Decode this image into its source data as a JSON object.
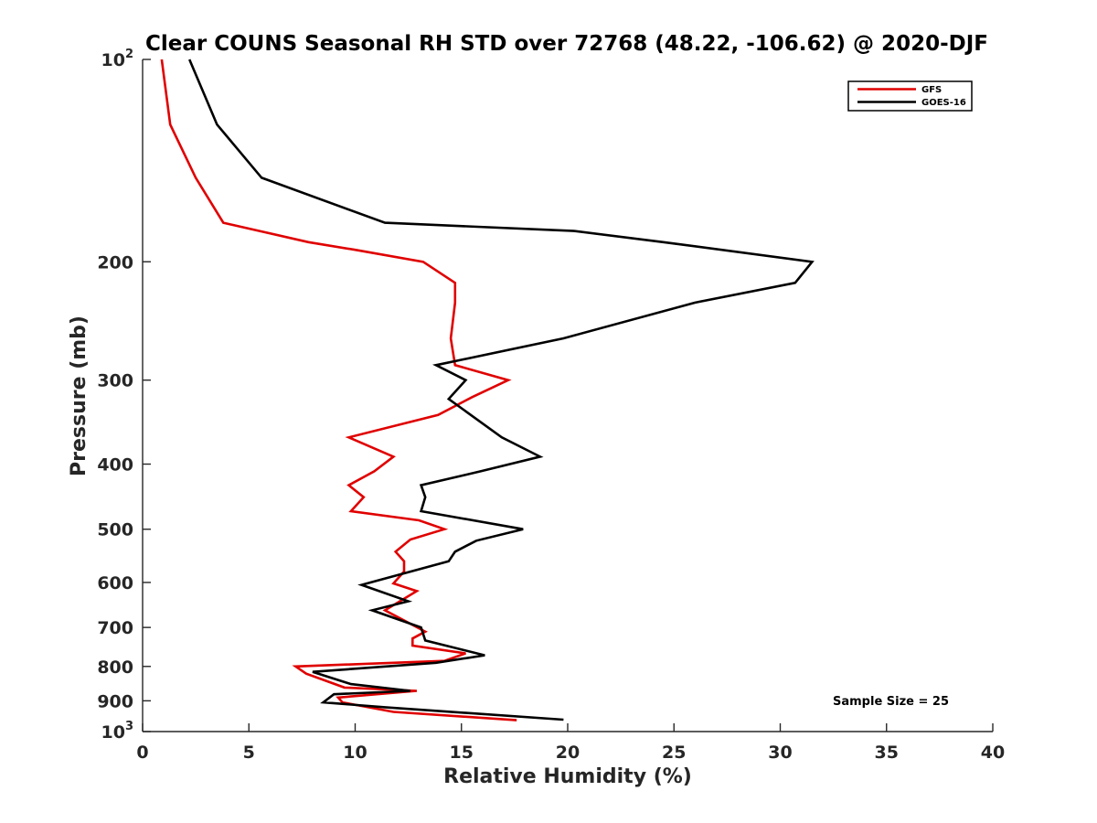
{
  "chart_data": {
    "type": "line",
    "title": "Clear COUNS Seasonal RH STD over 72768 (48.22, -106.62) @ 2020-DJF",
    "xlabel": "Relative Humidity (%)",
    "ylabel": "Pressure (mb)",
    "xlim": [
      0,
      40
    ],
    "ylim": [
      100,
      1000
    ],
    "yscale": "log",
    "y_reversed": true,
    "grid": false,
    "legend_position": "top-right",
    "x_ticks": [
      0,
      5,
      10,
      15,
      20,
      25,
      30,
      35,
      40
    ],
    "x_tick_labels": [
      "0",
      "5",
      "10",
      "15",
      "20",
      "25",
      "30",
      "35",
      "40"
    ],
    "y_ticks": [
      100,
      200,
      300,
      400,
      500,
      600,
      700,
      800,
      900,
      1000
    ],
    "y_tick_labels": [
      {
        "base": "10",
        "exp": "2"
      },
      {
        "base": "200",
        "exp": ""
      },
      {
        "base": "300",
        "exp": ""
      },
      {
        "base": "400",
        "exp": ""
      },
      {
        "base": "500",
        "exp": ""
      },
      {
        "base": "600",
        "exp": ""
      },
      {
        "base": "700",
        "exp": ""
      },
      {
        "base": "800",
        "exp": ""
      },
      {
        "base": "900",
        "exp": ""
      },
      {
        "base": "10",
        "exp": "3"
      }
    ],
    "annotation": "Sample Size = 25",
    "series": [
      {
        "name": "GFS",
        "color": "#e00000",
        "points": [
          [
            0.9,
            100
          ],
          [
            1.3,
            125
          ],
          [
            2.5,
            150
          ],
          [
            3.8,
            175
          ],
          [
            5.5,
            180
          ],
          [
            7.8,
            187
          ],
          [
            10.0,
            192
          ],
          [
            13.2,
            200
          ],
          [
            14.7,
            215
          ],
          [
            14.7,
            230
          ],
          [
            14.6,
            245
          ],
          [
            14.5,
            260
          ],
          [
            14.7,
            285
          ],
          [
            17.2,
            300
          ],
          [
            15.5,
            318
          ],
          [
            13.9,
            338
          ],
          [
            9.7,
            365
          ],
          [
            11.8,
            390
          ],
          [
            10.9,
            410
          ],
          [
            9.7,
            430
          ],
          [
            10.4,
            448
          ],
          [
            9.8,
            470
          ],
          [
            13.0,
            485
          ],
          [
            14.2,
            500
          ],
          [
            12.6,
            518
          ],
          [
            11.9,
            540
          ],
          [
            12.3,
            558
          ],
          [
            12.3,
            578
          ],
          [
            11.8,
            602
          ],
          [
            12.9,
            618
          ],
          [
            11.4,
            660
          ],
          [
            13.3,
            710
          ],
          [
            12.7,
            727
          ],
          [
            12.7,
            745
          ],
          [
            15.2,
            765
          ],
          [
            14.2,
            785
          ],
          [
            7.2,
            800
          ],
          [
            7.7,
            820
          ],
          [
            9.5,
            860
          ],
          [
            12.9,
            870
          ],
          [
            9.2,
            890
          ],
          [
            9.4,
            905
          ],
          [
            11.8,
            935
          ],
          [
            17.6,
            962
          ]
        ]
      },
      {
        "name": "GOES-16",
        "color": "#000000",
        "points": [
          [
            2.2,
            100
          ],
          [
            3.5,
            125
          ],
          [
            5.6,
            150
          ],
          [
            11.4,
            175
          ],
          [
            20.3,
            180
          ],
          [
            24.5,
            187
          ],
          [
            31.5,
            200
          ],
          [
            30.7,
            215
          ],
          [
            26.0,
            230
          ],
          [
            19.8,
            260
          ],
          [
            13.8,
            285
          ],
          [
            15.2,
            300
          ],
          [
            14.4,
            320
          ],
          [
            16.9,
            365
          ],
          [
            18.7,
            390
          ],
          [
            15.9,
            410
          ],
          [
            13.1,
            430
          ],
          [
            13.3,
            448
          ],
          [
            13.1,
            470
          ],
          [
            17.9,
            500
          ],
          [
            15.7,
            520
          ],
          [
            14.7,
            540
          ],
          [
            14.4,
            558
          ],
          [
            10.3,
            605
          ],
          [
            12.5,
            640
          ],
          [
            10.8,
            660
          ],
          [
            13.1,
            700
          ],
          [
            13.3,
            732
          ],
          [
            16.1,
            770
          ],
          [
            13.8,
            790
          ],
          [
            8.0,
            815
          ],
          [
            9.8,
            850
          ],
          [
            12.6,
            870
          ],
          [
            9.0,
            880
          ],
          [
            8.5,
            905
          ],
          [
            11.4,
            920
          ],
          [
            19.8,
            960
          ]
        ]
      }
    ]
  }
}
